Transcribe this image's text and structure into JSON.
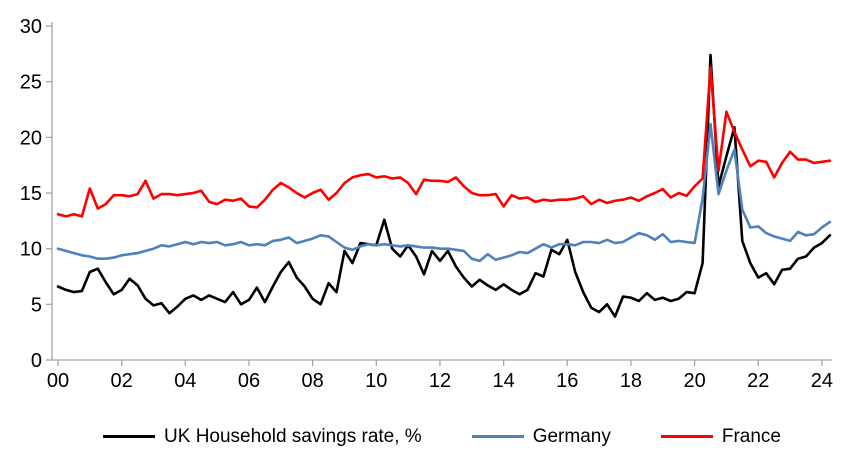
{
  "chart_data": {
    "type": "line",
    "title": "",
    "xlabel": "",
    "ylabel": "",
    "x_unit": "year (quarterly data, 2000Q1–2024Q2)",
    "x_start": 0,
    "x_step": 0.25,
    "xlim": [
      0,
      24.4
    ],
    "ylim": [
      0,
      30
    ],
    "y_ticks": [
      0,
      5,
      10,
      15,
      20,
      25,
      30
    ],
    "x_tick_positions": [
      0,
      2,
      4,
      6,
      8,
      10,
      12,
      14,
      16,
      18,
      20,
      22,
      24
    ],
    "x_tick_labels": [
      "00",
      "02",
      "04",
      "06",
      "08",
      "10",
      "12",
      "14",
      "16",
      "18",
      "20",
      "22",
      "24"
    ],
    "grid": false,
    "legend_position": "bottom",
    "axis_color": "#a6a6a6",
    "series": [
      {
        "name": "UK Household savings rate, %",
        "color": "#000000",
        "values": [
          6.6,
          6.3,
          6.1,
          6.2,
          7.9,
          8.2,
          7.0,
          5.9,
          6.3,
          7.3,
          6.7,
          5.5,
          4.9,
          5.1,
          4.2,
          4.8,
          5.5,
          5.8,
          5.4,
          5.8,
          5.5,
          5.2,
          6.1,
          5.0,
          5.4,
          6.5,
          5.2,
          6.6,
          7.9,
          8.8,
          7.4,
          6.6,
          5.5,
          5.0,
          6.9,
          6.1,
          9.8,
          8.7,
          10.5,
          10.4,
          10.3,
          12.6,
          10.0,
          9.3,
          10.3,
          9.3,
          7.7,
          9.8,
          8.9,
          9.8,
          8.4,
          7.4,
          6.6,
          7.2,
          6.7,
          6.3,
          6.8,
          6.3,
          5.9,
          6.3,
          7.8,
          7.5,
          9.9,
          9.5,
          10.8,
          7.9,
          6.1,
          4.7,
          4.3,
          5.0,
          3.9,
          5.7,
          5.6,
          5.3,
          6.0,
          5.4,
          5.6,
          5.3,
          5.5,
          6.1,
          6.0,
          8.7,
          27.4,
          15.6,
          18.3,
          20.9,
          10.7,
          8.7,
          7.4,
          7.8,
          6.8,
          8.1,
          8.2,
          9.1,
          9.3,
          10.1,
          10.5,
          11.2
        ]
      },
      {
        "name": "Germany",
        "color": "#4f81bd",
        "values": [
          10.0,
          9.8,
          9.6,
          9.4,
          9.3,
          9.1,
          9.1,
          9.2,
          9.4,
          9.5,
          9.6,
          9.8,
          10.0,
          10.3,
          10.2,
          10.4,
          10.6,
          10.4,
          10.6,
          10.5,
          10.6,
          10.3,
          10.4,
          10.6,
          10.3,
          10.4,
          10.3,
          10.7,
          10.8,
          11.0,
          10.5,
          10.7,
          10.9,
          11.2,
          11.1,
          10.6,
          10.1,
          9.9,
          10.2,
          10.4,
          10.3,
          10.4,
          10.3,
          10.2,
          10.3,
          10.2,
          10.1,
          10.1,
          10.0,
          10.0,
          9.9,
          9.8,
          9.1,
          8.9,
          9.5,
          9.0,
          9.2,
          9.4,
          9.7,
          9.6,
          10.0,
          10.4,
          10.1,
          10.4,
          10.4,
          10.3,
          10.6,
          10.6,
          10.5,
          10.8,
          10.5,
          10.6,
          11.0,
          11.4,
          11.2,
          10.8,
          11.3,
          10.6,
          10.7,
          10.6,
          10.5,
          14.5,
          21.2,
          14.9,
          17.0,
          18.9,
          13.5,
          11.9,
          12.0,
          11.4,
          11.1,
          10.9,
          10.7,
          11.5,
          11.2,
          11.3,
          11.9,
          12.4
        ]
      },
      {
        "name": "France",
        "color": "#ff0000",
        "values": [
          13.1,
          12.9,
          13.1,
          12.9,
          15.4,
          13.6,
          14.0,
          14.8,
          14.8,
          14.7,
          14.9,
          16.1,
          14.5,
          14.9,
          14.9,
          14.8,
          14.9,
          15.0,
          15.2,
          14.2,
          14.0,
          14.4,
          14.3,
          14.5,
          13.8,
          13.7,
          14.4,
          15.3,
          15.9,
          15.5,
          15.0,
          14.6,
          15.0,
          15.3,
          14.4,
          15.0,
          15.9,
          16.4,
          16.6,
          16.7,
          16.4,
          16.5,
          16.3,
          16.4,
          15.9,
          14.9,
          16.2,
          16.1,
          16.1,
          16.0,
          16.4,
          15.6,
          15.0,
          14.8,
          14.8,
          14.9,
          13.8,
          14.8,
          14.5,
          14.6,
          14.2,
          14.4,
          14.3,
          14.4,
          14.4,
          14.5,
          14.7,
          14.0,
          14.4,
          14.1,
          14.3,
          14.4,
          14.6,
          14.3,
          14.7,
          15.0,
          15.35,
          14.6,
          15.0,
          14.75,
          15.6,
          16.3,
          26.3,
          17.0,
          22.3,
          20.5,
          18.9,
          17.4,
          17.9,
          17.8,
          16.4,
          17.7,
          18.7,
          18.0,
          18.0,
          17.7,
          17.8,
          17.9
        ]
      }
    ]
  },
  "legend": {
    "items": [
      "UK Household savings rate, %",
      "Germany",
      "France"
    ]
  }
}
